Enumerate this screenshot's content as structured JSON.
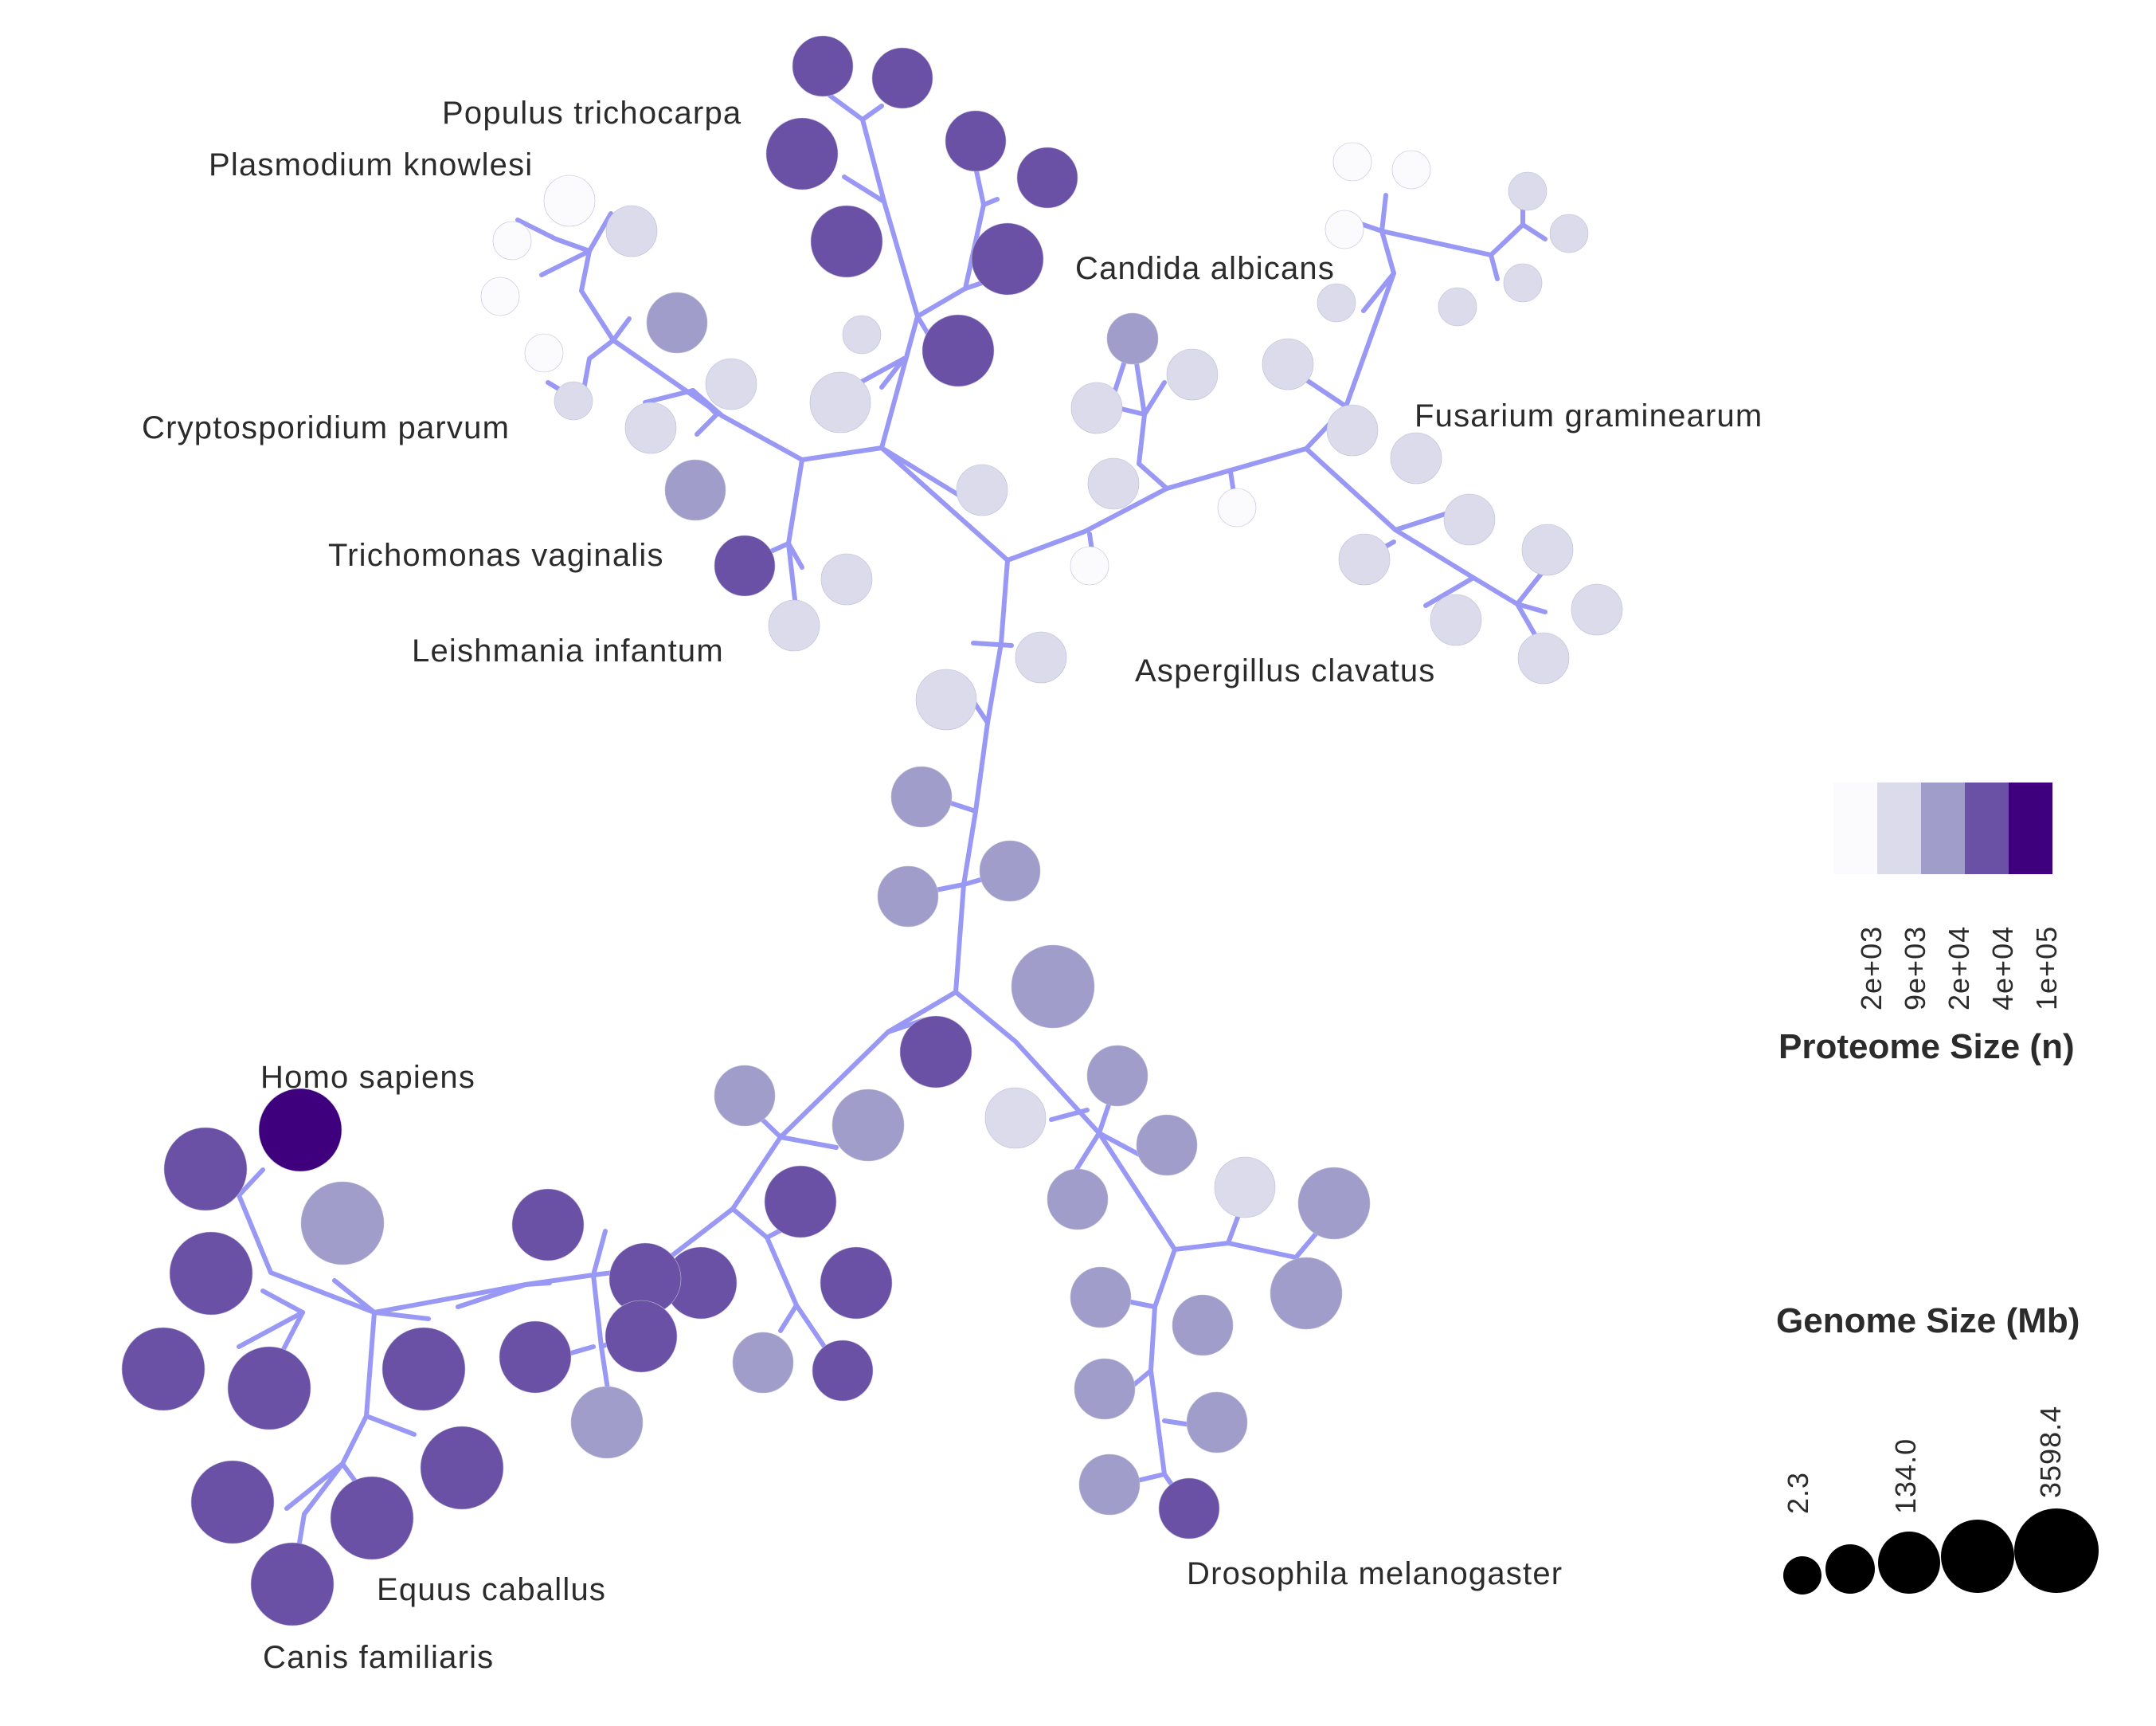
{
  "diagram": {
    "branch_color": "#9999f5",
    "labels": [
      "Populus trichocarpa",
      "Plasmodium knowlesi",
      "Candida albicans",
      "Cryptosporidium parvum",
      "Fusarium graminearum",
      "Trichomonas vaginalis",
      "Leishmania infantum",
      "Aspergillus clavatus",
      "Homo sapiens",
      "Equus caballus",
      "Canis familiaris",
      "Drosophila melanogaster"
    ]
  },
  "legend": {
    "proteome": {
      "title": "Proteome Size (n)",
      "ticks": [
        "2e+03",
        "9e+03",
        "2e+04",
        "4e+04",
        "1e+05"
      ],
      "colors": [
        "#fbfbfe",
        "#dcdbec",
        "#a09dcb",
        "#6b51a5",
        "#3f007d"
      ]
    },
    "genome": {
      "title": "Genome Size (Mb)",
      "ticks": [
        "2.3",
        "134.0",
        "3598.4"
      ]
    }
  }
}
